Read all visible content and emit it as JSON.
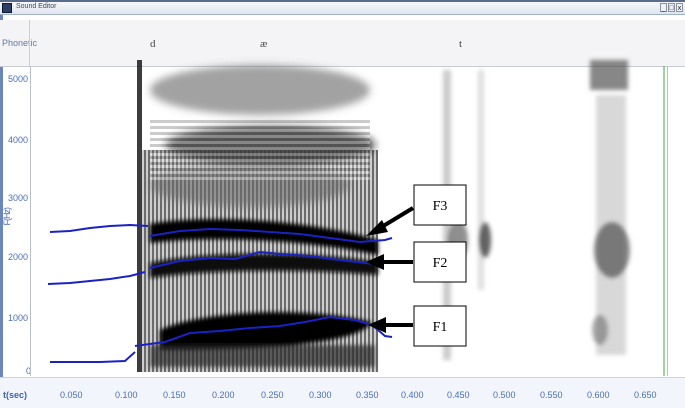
{
  "window": {
    "title": "Sound Editor",
    "controls": [
      "_",
      "□",
      "x"
    ]
  },
  "phonetic_tier": {
    "label": "Phonetic",
    "segments": [
      {
        "symbol": "d"
      },
      {
        "symbol": "æ"
      },
      {
        "symbol": "t"
      }
    ]
  },
  "axes": {
    "y_label": "F(Hz)",
    "y_ticks": [
      "5000",
      "4000",
      "3000",
      "2000",
      "1000",
      "0"
    ],
    "x_label": "t(sec)",
    "x_ticks": [
      "0.050",
      "0.100",
      "0.150",
      "0.200",
      "0.250",
      "0.300",
      "0.350",
      "0.400",
      "0.450",
      "0.500",
      "0.550",
      "0.600",
      "0.650"
    ]
  },
  "annotations": [
    {
      "label": "F3"
    },
    {
      "label": "F2"
    },
    {
      "label": "F1"
    }
  ],
  "colors": {
    "formant_track": "#1b22c4",
    "cursor_line": "#3ca83c",
    "spectrogram_ink": "#000000"
  }
}
